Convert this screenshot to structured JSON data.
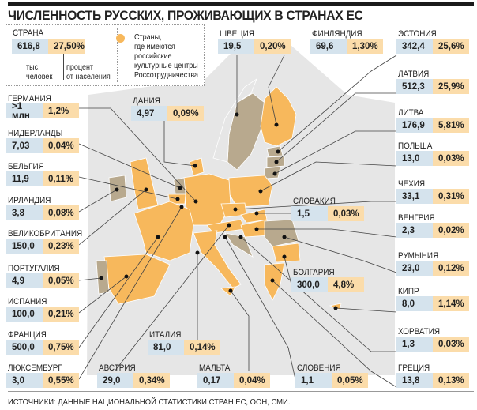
{
  "title": "ЧИСЛЕННОСТЬ РУССКИХ, ПРОЖИВАЮЩИХ В СТРАНАХ ЕС",
  "legend": {
    "country_label": "СТРАНА",
    "value": "616,8",
    "percent": "27,50%",
    "value_caption_1": "тыс.",
    "value_caption_2": "человек",
    "percent_caption_1": "процент",
    "percent_caption_2": "от населения",
    "marker_text": [
      "Страны,",
      "где имеются",
      "российские",
      "культурные центры",
      "Россотрудничества"
    ]
  },
  "colors": {
    "value_bg": "#d5e3ed",
    "percent_bg": "#fbdcaa",
    "highlight_country": "#f7b85c",
    "other_country": "#b8a98e",
    "land": "#e6e6e6"
  },
  "countries": [
    {
      "name": "ГЕРМАНИЯ",
      "value": ">1 млн",
      "percent": "1,2%",
      "rs": true
    },
    {
      "name": "ДАНИЯ",
      "value": "4,97",
      "percent": "0,09%",
      "rs": true
    },
    {
      "name": "ШВЕЦИЯ",
      "value": "19,5",
      "percent": "0,20%",
      "rs": false
    },
    {
      "name": "ФИНЛЯНДИЯ",
      "value": "69,6",
      "percent": "1,30%",
      "rs": true
    },
    {
      "name": "ЭСТОНИЯ",
      "value": "342,4",
      "percent": "25,6%",
      "rs": false
    },
    {
      "name": "ЛАТВИЯ",
      "value": "512,3",
      "percent": "25,9%",
      "rs": false
    },
    {
      "name": "ЛИТВА",
      "value": "176,9",
      "percent": "5,81%",
      "rs": false
    },
    {
      "name": "ПОЛЬША",
      "value": "13,0",
      "percent": "0,03%",
      "rs": true
    },
    {
      "name": "ЧЕХИЯ",
      "value": "33,1",
      "percent": "0,31%",
      "rs": true
    },
    {
      "name": "ВЕНГРИЯ",
      "value": "2,3",
      "percent": "0,02%",
      "rs": true
    },
    {
      "name": "РУМЫНИЯ",
      "value": "23,0",
      "percent": "0,12%",
      "rs": false
    },
    {
      "name": "КИПР",
      "value": "8,0",
      "percent": "1,14%",
      "rs": true
    },
    {
      "name": "ХОРВАТИЯ",
      "value": "1,3",
      "percent": "0,03%",
      "rs": false
    },
    {
      "name": "ГРЕЦИЯ",
      "value": "13,8",
      "percent": "0,13%",
      "rs": true
    },
    {
      "name": "НИДЕРЛАНДЫ",
      "value": "7,03",
      "percent": "0,04%",
      "rs": false
    },
    {
      "name": "БЕЛЬГИЯ",
      "value": "11,9",
      "percent": "0,11%",
      "rs": true
    },
    {
      "name": "ИРЛАНДИЯ",
      "value": "3,8",
      "percent": "0,08%",
      "rs": false
    },
    {
      "name": "ВЕЛИКОБРИТАНИЯ",
      "value": "150,0",
      "percent": "0,23%",
      "rs": true
    },
    {
      "name": "ПОРТУГАЛИЯ",
      "value": "4,9",
      "percent": "0,05%",
      "rs": false
    },
    {
      "name": "ИСПАНИЯ",
      "value": "100,0",
      "percent": "0,21%",
      "rs": true
    },
    {
      "name": "ФРАНЦИЯ",
      "value": "500,0",
      "percent": "0,75%",
      "rs": true
    },
    {
      "name": "ЛЮКСЕМБУРГ",
      "value": "3,0",
      "percent": "0,55%",
      "rs": true
    },
    {
      "name": "АВСТРИЯ",
      "value": "29,0",
      "percent": "0,34%",
      "rs": true
    },
    {
      "name": "ИТАЛИЯ",
      "value": "81,0",
      "percent": "0,14%",
      "rs": true
    },
    {
      "name": "МАЛЬТА",
      "value": "0,17",
      "percent": "0,04%",
      "rs": true
    },
    {
      "name": "СЛОВЕНИЯ",
      "value": "1,1",
      "percent": "0,05%",
      "rs": true
    },
    {
      "name": "СЛОВАКИЯ",
      "value": "1,5",
      "percent": "0,03%",
      "rs": true
    },
    {
      "name": "БОЛГАРИЯ",
      "value": "300,0",
      "percent": "4,8%",
      "rs": true
    }
  ],
  "source": "ИСТОЧНИКИ: ДАННЫЕ НАЦИОНАЛЬНОЙ СТАТИСТИКИ СТРАН ЕС, ООН, СМИ."
}
